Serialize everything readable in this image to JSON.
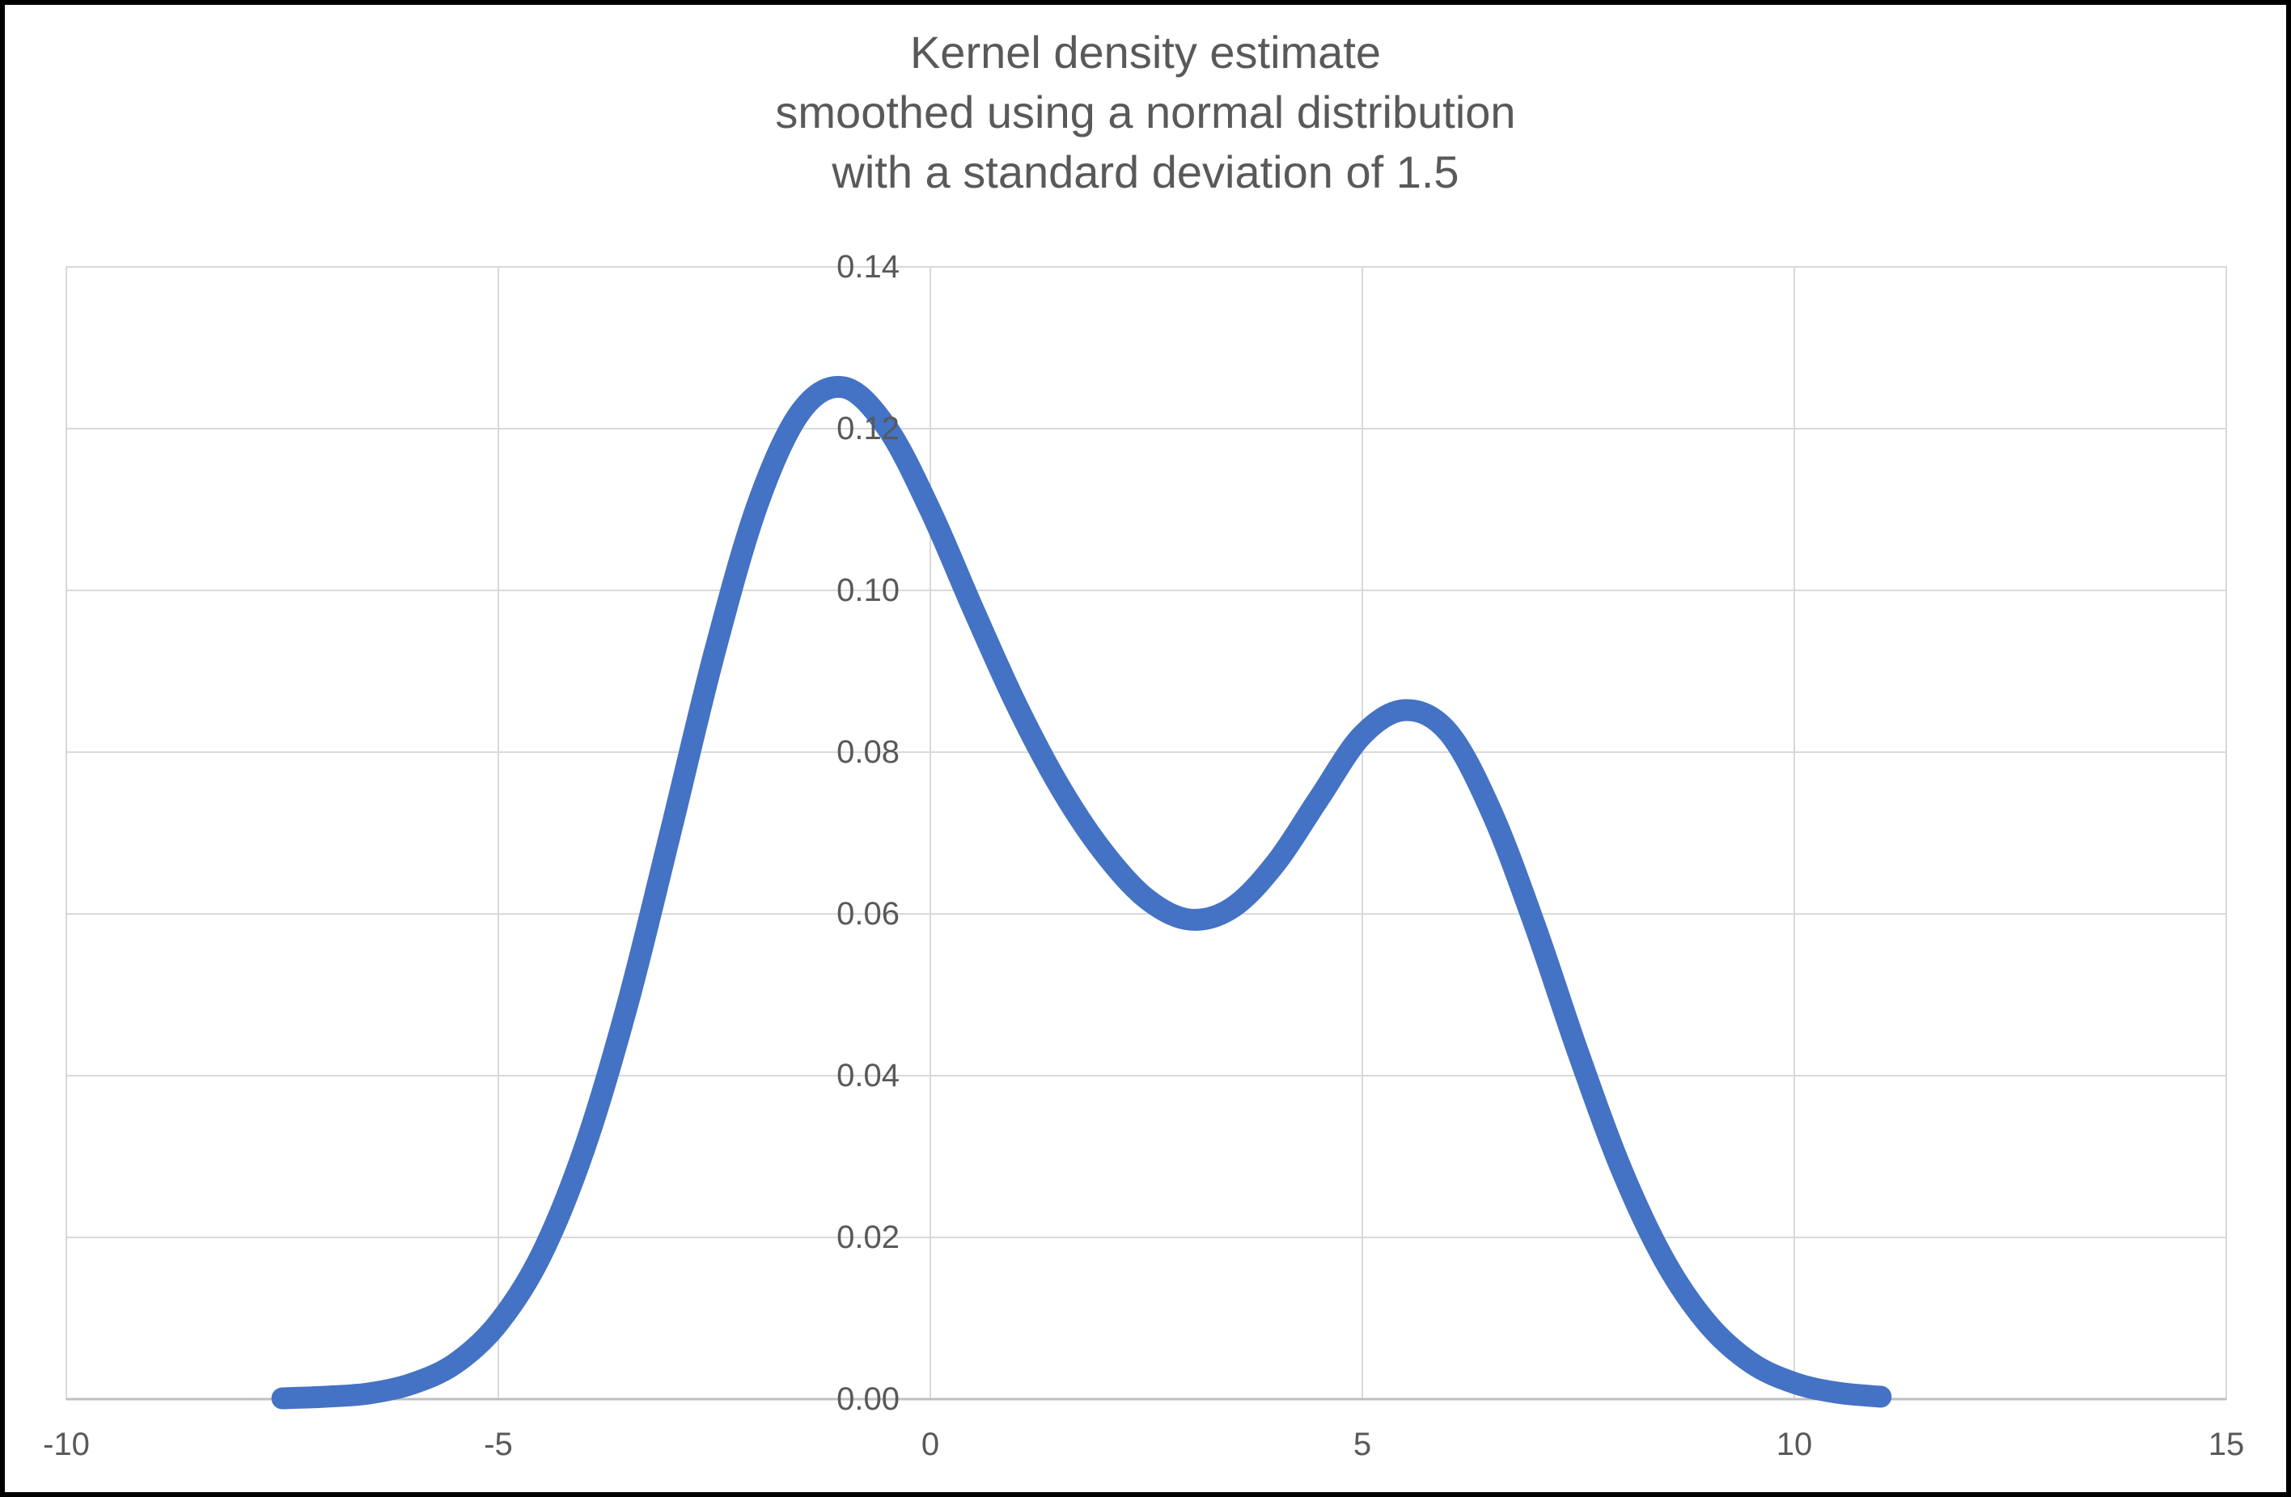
{
  "title": {
    "line1": "Kernel density estimate",
    "line2": "smoothed using a normal distribution",
    "line3": "with a standard deviation of 1.5"
  },
  "chart_data": {
    "type": "line",
    "title": "Kernel density estimate smoothed using a normal distribution with a standard deviation of 1.5",
    "title_lines": [
      "Kernel density estimate",
      "smoothed using a normal distribution",
      "with a standard deviation of 1.5"
    ],
    "xlabel": "",
    "ylabel": "",
    "xlim": [
      -10,
      15
    ],
    "ylim": [
      0,
      0.14
    ],
    "grid": "both",
    "legend": "none",
    "x_ticks": [
      {
        "value": -10,
        "label": "-10"
      },
      {
        "value": -5,
        "label": "-5"
      },
      {
        "value": 0,
        "label": "0"
      },
      {
        "value": 5,
        "label": "5"
      },
      {
        "value": 10,
        "label": "10"
      },
      {
        "value": 15,
        "label": "15"
      }
    ],
    "y_ticks": [
      {
        "value": 0.0,
        "label": "0.00"
      },
      {
        "value": 0.02,
        "label": "0.02"
      },
      {
        "value": 0.04,
        "label": "0.04"
      },
      {
        "value": 0.06,
        "label": "0.06"
      },
      {
        "value": 0.08,
        "label": "0.08"
      },
      {
        "value": 0.1,
        "label": "0.10"
      },
      {
        "value": 0.12,
        "label": "0.12"
      },
      {
        "value": 0.14,
        "label": "0.14"
      }
    ],
    "series": [
      {
        "name": "Kernel density estimate",
        "x": [
          -7.5,
          -7,
          -6.5,
          -6,
          -5.5,
          -5,
          -4.5,
          -4,
          -3.5,
          -3,
          -2.5,
          -2,
          -1.5,
          -1,
          -0.5,
          0,
          0.5,
          1,
          1.5,
          2,
          2.5,
          3,
          3.5,
          4,
          4.5,
          5,
          5.5,
          6,
          6.5,
          7,
          7.5,
          8,
          8.5,
          9,
          9.5,
          10,
          10.5,
          11
        ],
        "y": [
          0.0001,
          0.0003,
          0.0007,
          0.0019,
          0.0044,
          0.0094,
          0.0179,
          0.0311,
          0.049,
          0.0704,
          0.0922,
          0.1106,
          0.1221,
          0.1251,
          0.1201,
          0.1099,
          0.0976,
          0.0858,
          0.0757,
          0.0677,
          0.0619,
          0.0593,
          0.0608,
          0.0663,
          0.0743,
          0.0821,
          0.0852,
          0.0824,
          0.0725,
          0.0585,
          0.0428,
          0.0284,
          0.0171,
          0.0093,
          0.0045,
          0.002,
          0.0008,
          0.0003
        ]
      }
    ],
    "annotations": {
      "first_peak": {
        "x": -1,
        "y": 0.125
      },
      "valley": {
        "x": 3,
        "y": 0.059
      },
      "second_peak": {
        "x": 5.5,
        "y": 0.085
      }
    },
    "colors": {
      "line": "#4472C4",
      "gridline": "#D9D9D9",
      "axis_line": "#BFBFBF",
      "text": "#595959",
      "background": "#FFFFFF",
      "frame": "#000000"
    }
  }
}
